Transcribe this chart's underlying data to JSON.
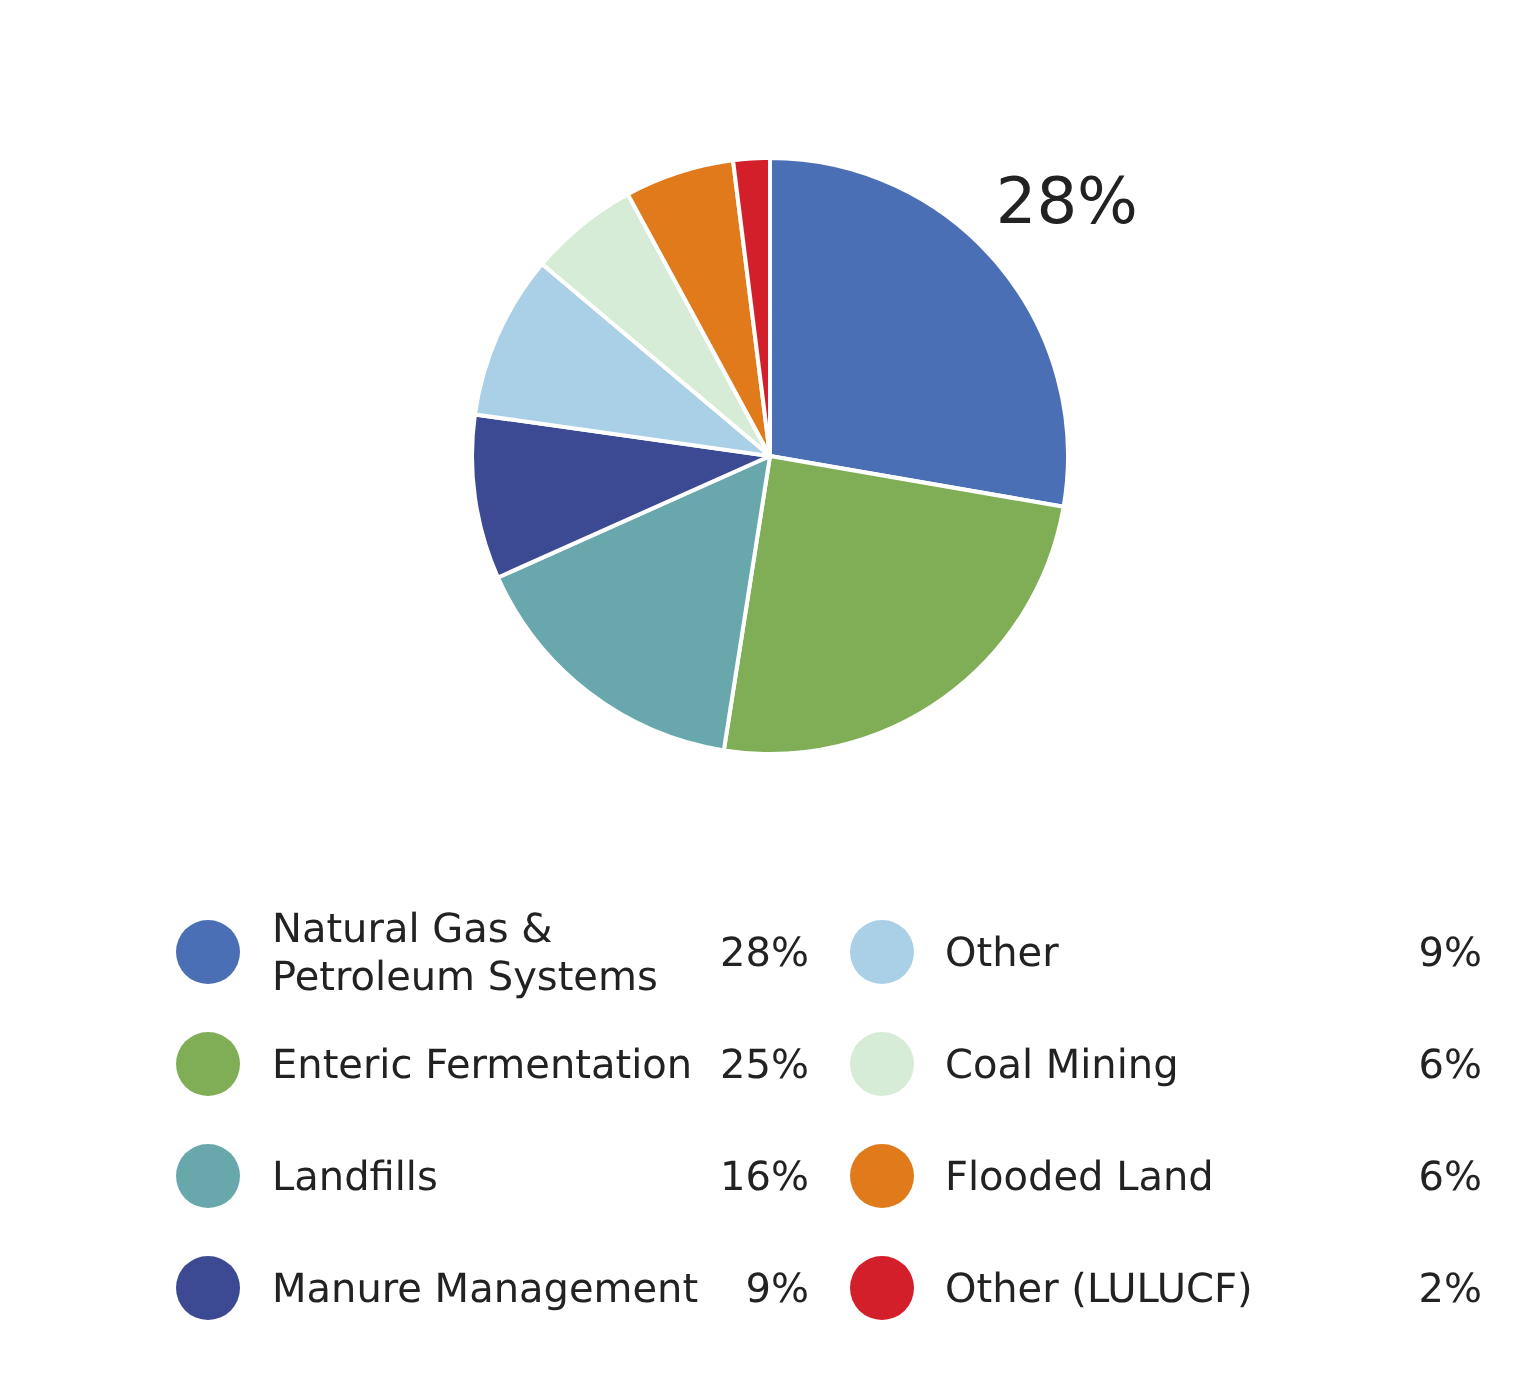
{
  "chart_data": {
    "type": "pie",
    "categories": [
      "Natural Gas & Petroleum Systems",
      "Enteric Fermentation",
      "Landfills",
      "Manure Management",
      "Other",
      "Coal Mining",
      "Flooded Land",
      "Other (LULUCF)"
    ],
    "values": [
      28,
      25,
      16,
      9,
      9,
      6,
      6,
      2
    ],
    "colors": [
      "#4a6fb5",
      "#7fae56",
      "#68a8ad",
      "#3b4a92",
      "#a9d0e6",
      "#d6ecd6",
      "#e07a1b",
      "#d21f2a"
    ],
    "value_labels": [
      "28%",
      "25%",
      "16%",
      "9%",
      "9%",
      "6%",
      "6%",
      "2%"
    ],
    "annotations": [
      {
        "text": "28%",
        "x": "Natural Gas & Petroleum Systems"
      }
    ],
    "legend": "bottom"
  }
}
